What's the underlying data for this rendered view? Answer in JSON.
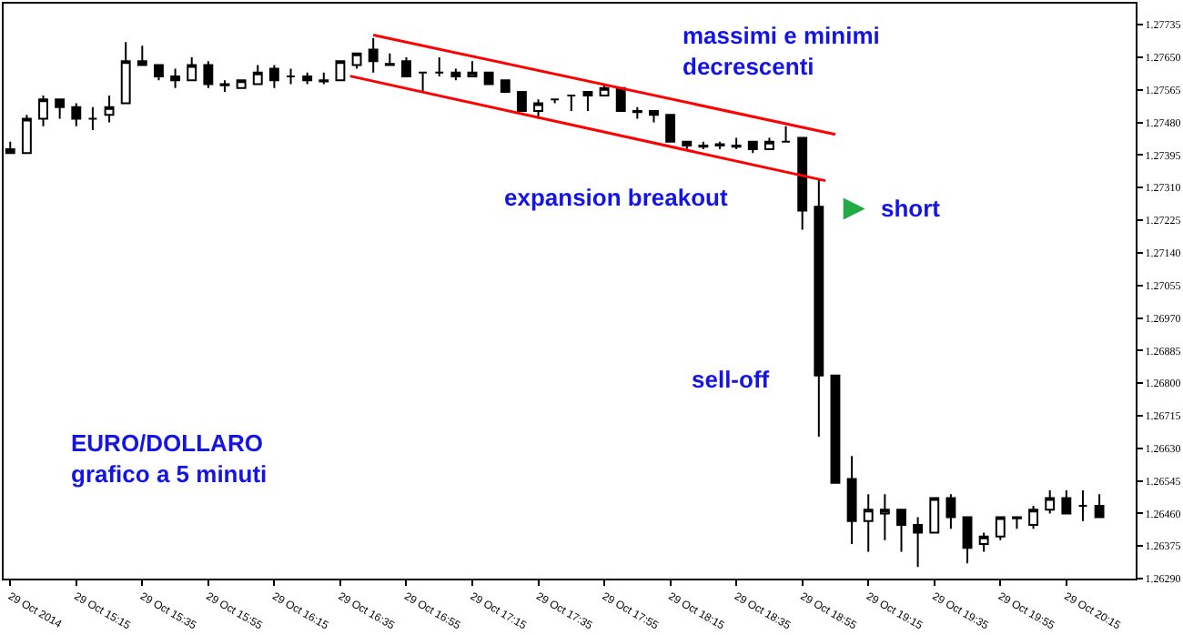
{
  "chart_data": {
    "type": "candlestick",
    "x": [
      "2014-10-29T14:55",
      "2014-10-29T15:00",
      "2014-10-29T15:05",
      "2014-10-29T15:10",
      "2014-10-29T15:15",
      "2014-10-29T15:20",
      "2014-10-29T15:25",
      "2014-10-29T15:30",
      "2014-10-29T15:35",
      "2014-10-29T15:40",
      "2014-10-29T15:45",
      "2014-10-29T15:50",
      "2014-10-29T15:55",
      "2014-10-29T16:00",
      "2014-10-29T16:05",
      "2014-10-29T16:10",
      "2014-10-29T16:15",
      "2014-10-29T16:20",
      "2014-10-29T16:25",
      "2014-10-29T16:30",
      "2014-10-29T16:35",
      "2014-10-29T16:40",
      "2014-10-29T16:45",
      "2014-10-29T16:50",
      "2014-10-29T16:55",
      "2014-10-29T17:00",
      "2014-10-29T17:05",
      "2014-10-29T17:10",
      "2014-10-29T17:15",
      "2014-10-29T17:20",
      "2014-10-29T17:25",
      "2014-10-29T17:30",
      "2014-10-29T17:35",
      "2014-10-29T17:40",
      "2014-10-29T17:45",
      "2014-10-29T17:50",
      "2014-10-29T17:55",
      "2014-10-29T18:00",
      "2014-10-29T18:05",
      "2014-10-29T18:10",
      "2014-10-29T18:15",
      "2014-10-29T18:20",
      "2014-10-29T18:25",
      "2014-10-29T18:30",
      "2014-10-29T18:35",
      "2014-10-29T18:40",
      "2014-10-29T18:45",
      "2014-10-29T18:50",
      "2014-10-29T18:55",
      "2014-10-29T19:00",
      "2014-10-29T19:05",
      "2014-10-29T19:10",
      "2014-10-29T19:15",
      "2014-10-29T19:20",
      "2014-10-29T19:25",
      "2014-10-29T19:30",
      "2014-10-29T19:35",
      "2014-10-29T19:40",
      "2014-10-29T19:45",
      "2014-10-29T19:50",
      "2014-10-29T19:55",
      "2014-10-29T20:00",
      "2014-10-29T20:05",
      "2014-10-29T20:10",
      "2014-10-29T20:15",
      "2014-10-29T20:20",
      "2014-10-29T20:25"
    ],
    "ohlc": [
      [
        1.2741,
        1.2743,
        1.274,
        1.274
      ],
      [
        1.274,
        1.275,
        1.274,
        1.2749
      ],
      [
        1.2749,
        1.2755,
        1.2747,
        1.2754
      ],
      [
        1.2754,
        1.2754,
        1.2749,
        1.2752
      ],
      [
        1.2752,
        1.2753,
        1.2747,
        1.2749
      ],
      [
        1.2749,
        1.2752,
        1.2746,
        1.2749
      ],
      [
        1.275,
        1.2755,
        1.2748,
        1.2752
      ],
      [
        1.2753,
        1.2769,
        1.2753,
        1.2764
      ],
      [
        1.2764,
        1.2768,
        1.2763,
        1.2763
      ],
      [
        1.2763,
        1.2763,
        1.2759,
        1.276
      ],
      [
        1.276,
        1.2762,
        1.2757,
        1.2759
      ],
      [
        1.2759,
        1.2765,
        1.2759,
        1.2763
      ],
      [
        1.2763,
        1.2764,
        1.2757,
        1.2758
      ],
      [
        1.2758,
        1.2759,
        1.2756,
        1.27577
      ],
      [
        1.2757,
        1.2759,
        1.2757,
        1.2759
      ],
      [
        1.2758,
        1.2763,
        1.2758,
        1.2761
      ],
      [
        1.2762,
        1.2763,
        1.2757,
        1.2759
      ],
      [
        1.276,
        1.2762,
        1.2758,
        1.276
      ],
      [
        1.276,
        1.2761,
        1.2758,
        1.2759
      ],
      [
        1.2759,
        1.2761,
        1.2758,
        1.27587
      ],
      [
        1.2759,
        1.2764,
        1.2759,
        1.2764
      ],
      [
        1.2763,
        1.2766,
        1.2762,
        1.2766
      ],
      [
        1.2767,
        1.277,
        1.2761,
        1.2764
      ],
      [
        1.27633,
        1.2766,
        1.2763,
        1.2763
      ],
      [
        1.2764,
        1.2765,
        1.276,
        1.276
      ],
      [
        1.2761,
        1.2761,
        1.2756,
        1.2761
      ],
      [
        1.2761,
        1.2765,
        1.276,
        1.2761
      ],
      [
        1.2761,
        1.2762,
        1.2759,
        1.276
      ],
      [
        1.276,
        1.2764,
        1.276,
        1.2761
      ],
      [
        1.2761,
        1.2761,
        1.2758,
        1.2758
      ],
      [
        1.2759,
        1.2759,
        1.2756,
        1.2756
      ],
      [
        1.2756,
        1.2756,
        1.2751,
        1.2751
      ],
      [
        1.2751,
        1.2754,
        1.2749,
        1.2753
      ],
      [
        1.2754,
        1.2754,
        1.2753,
        1.2754
      ],
      [
        1.2755,
        1.2755,
        1.2751,
        1.2755
      ],
      [
        1.2755,
        1.2756,
        1.2751,
        1.2756
      ],
      [
        1.2755,
        1.2758,
        1.2755,
        1.2757
      ],
      [
        1.2757,
        1.2757,
        1.2751,
        1.2751
      ],
      [
        1.2751,
        1.2752,
        1.2749,
        1.27507
      ],
      [
        1.2751,
        1.2751,
        1.2748,
        1.275
      ],
      [
        1.275,
        1.275,
        1.2743,
        1.2743
      ],
      [
        1.2743,
        1.2743,
        1.2741,
        1.2742
      ],
      [
        1.2742,
        1.2743,
        1.2741,
        1.27417
      ],
      [
        1.2742,
        1.2743,
        1.2741,
        1.27423
      ],
      [
        1.2742,
        1.2744,
        1.2741,
        1.27417
      ],
      [
        1.2743,
        1.2743,
        1.274,
        1.2741
      ],
      [
        1.2741,
        1.2744,
        1.2741,
        1.2743
      ],
      [
        1.2743,
        1.2747,
        1.2743,
        1.2743
      ],
      [
        1.2744,
        1.2744,
        1.272,
        1.2725
      ],
      [
        1.2726,
        1.2733,
        1.2666,
        1.2682
      ],
      [
        1.2682,
        1.2682,
        1.2654,
        1.2654
      ],
      [
        1.2655,
        1.2661,
        1.2638,
        1.2644
      ],
      [
        1.2644,
        1.2651,
        1.2636,
        1.2647
      ],
      [
        1.2646,
        1.2651,
        1.2639,
        1.2647
      ],
      [
        1.2647,
        1.2647,
        1.2636,
        1.2643
      ],
      [
        1.2643,
        1.2645,
        1.2632,
        1.2641
      ],
      [
        1.2641,
        1.265,
        1.2641,
        1.265
      ],
      [
        1.265,
        1.2651,
        1.2642,
        1.2645
      ],
      [
        1.2645,
        1.2645,
        1.2633,
        1.2637
      ],
      [
        1.2638,
        1.2641,
        1.2636,
        1.264
      ],
      [
        1.264,
        1.2645,
        1.2639,
        1.2645
      ],
      [
        1.2645,
        1.2645,
        1.2642,
        1.26447
      ],
      [
        1.2643,
        1.2648,
        1.2642,
        1.2647
      ],
      [
        1.2647,
        1.2652,
        1.2646,
        1.265
      ],
      [
        1.265,
        1.2652,
        1.2646,
        1.2646
      ],
      [
        1.2648,
        1.2652,
        1.2644,
        1.2648
      ],
      [
        1.2648,
        1.2651,
        1.2645,
        1.2645
      ]
    ],
    "series": [
      {
        "type": "line",
        "x": [
          "2014-10-29T16:45",
          "2014-10-29T19:05"
        ],
        "values": [
          1.27708,
          1.27449
        ],
        "color": "#ff0000"
      },
      {
        "type": "line",
        "x": [
          "2014-10-29T16:38",
          "2014-10-29T19:02"
        ],
        "values": [
          1.27601,
          1.27328
        ],
        "color": "#ff0000"
      }
    ],
    "xlim": [
      "2014-10-29T14:53",
      "2014-10-29T20:36"
    ],
    "xticks": [
      {
        "value": "2014-10-29T14:55",
        "label": "29 Oct 2014"
      },
      {
        "value": "2014-10-29T15:15",
        "label": "29 Oct 15:15"
      },
      {
        "value": "2014-10-29T15:35",
        "label": "29 Oct 15:35"
      },
      {
        "value": "2014-10-29T15:55",
        "label": "29 Oct 15:55"
      },
      {
        "value": "2014-10-29T16:15",
        "label": "29 Oct 16:15"
      },
      {
        "value": "2014-10-29T16:35",
        "label": "29 Oct 16:35"
      },
      {
        "value": "2014-10-29T16:55",
        "label": "29 Oct 16:55"
      },
      {
        "value": "2014-10-29T17:15",
        "label": "29 Oct 17:15"
      },
      {
        "value": "2014-10-29T17:35",
        "label": "29 Oct 17:35"
      },
      {
        "value": "2014-10-29T17:55",
        "label": "29 Oct 17:55"
      },
      {
        "value": "2014-10-29T18:15",
        "label": "29 Oct 18:15"
      },
      {
        "value": "2014-10-29T18:35",
        "label": "29 Oct 18:35"
      },
      {
        "value": "2014-10-29T18:55",
        "label": "29 Oct 18:55"
      },
      {
        "value": "2014-10-29T19:15",
        "label": "29 Oct 19:15"
      },
      {
        "value": "2014-10-29T19:35",
        "label": "29 Oct 19:35"
      },
      {
        "value": "2014-10-29T19:55",
        "label": "29 Oct 19:55"
      },
      {
        "value": "2014-10-29T20:15",
        "label": "29 Oct 20:15"
      }
    ],
    "ylim": [
      1.2629,
      1.2779
    ],
    "yticks": [
      1.27735,
      {
        "value": 1.2765,
        "label": "1.27650"
      },
      1.27565,
      {
        "value": 1.2748,
        "label": "1.27480"
      },
      1.27395,
      {
        "value": 1.2731,
        "label": "1.27310"
      },
      1.27225,
      {
        "value": 1.2714,
        "label": "1.27140"
      },
      1.27055,
      {
        "value": 1.2697,
        "label": "1.26970"
      },
      1.26885,
      {
        "value": 1.268,
        "label": "1.26800"
      },
      1.26715,
      {
        "value": 1.2663,
        "label": "1.26630"
      },
      1.26545,
      {
        "value": 1.2646,
        "label": "1.26460"
      },
      1.26375,
      {
        "value": 1.2629,
        "label": "1.26290"
      }
    ],
    "annotations": [
      "massimi e minimi\ndecrescenti",
      "expansion breakout",
      "short",
      "sell-off",
      "EURO/DOLLARO\ngrafico a 5 minuti"
    ]
  }
}
